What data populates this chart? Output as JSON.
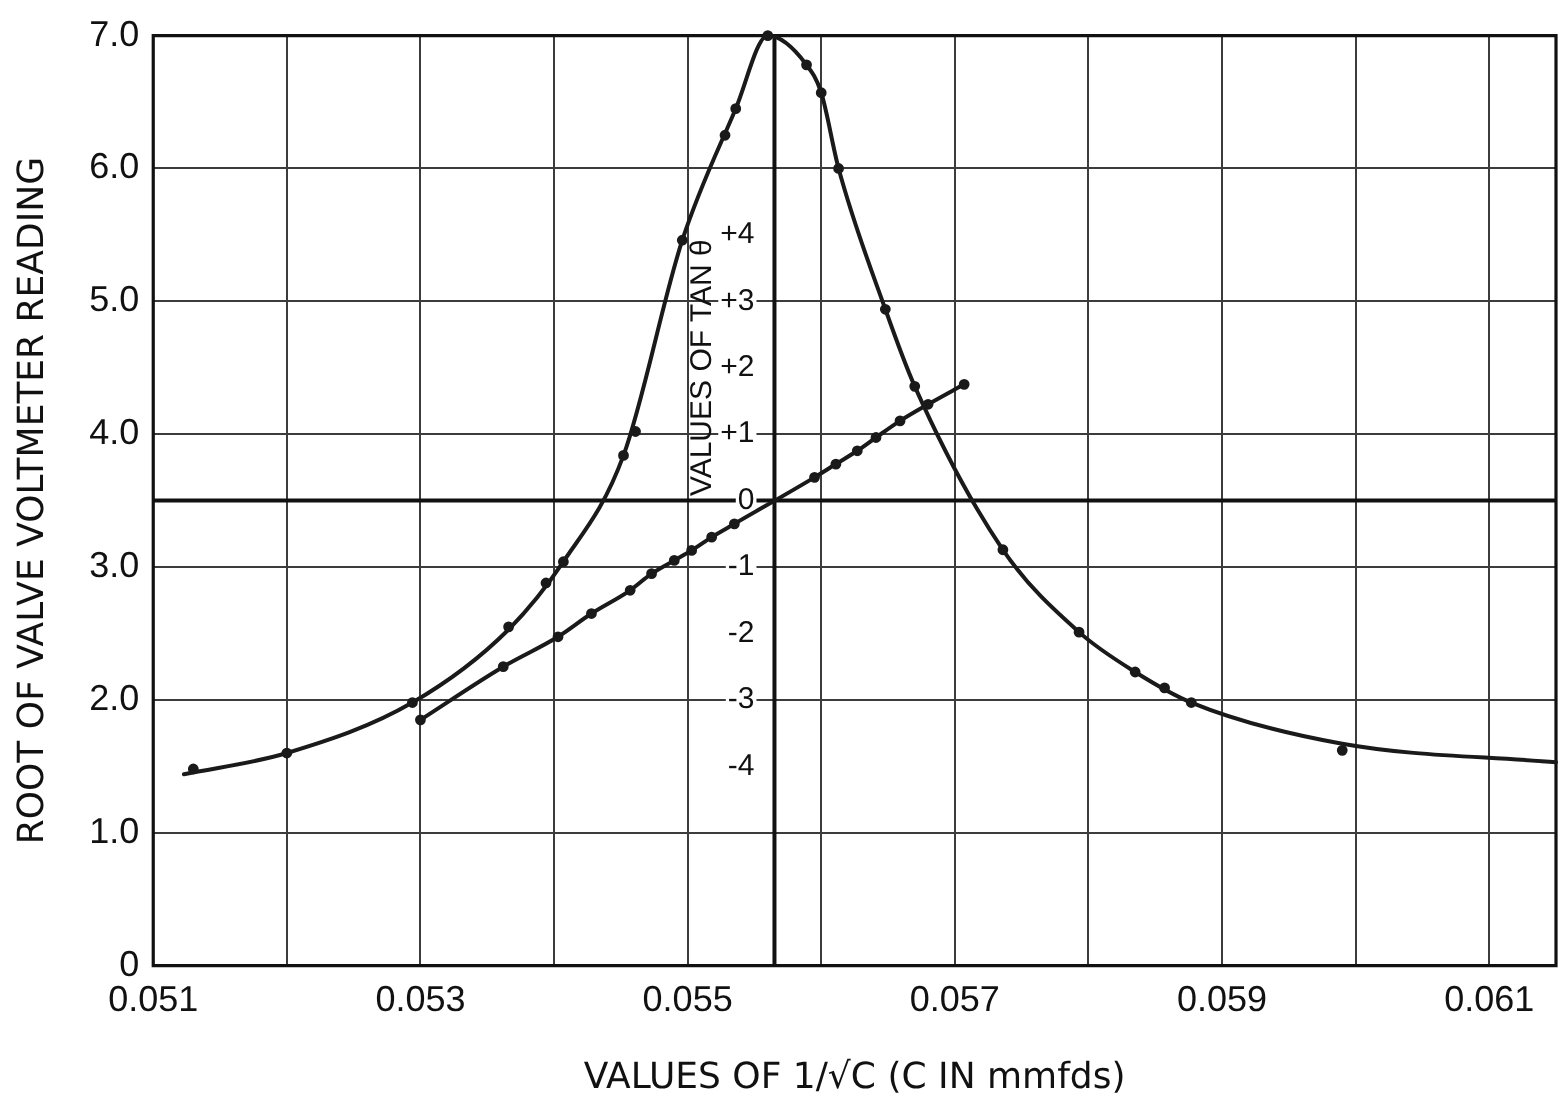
{
  "chart_data": {
    "type": "line",
    "xlabel": "VALUES OF 1/√C (C IN mmfds)",
    "ylabel": "ROOT OF VALVE VOLTMETER READING",
    "y2label": "VALUES OF TAN θ",
    "xlim": [
      0.051,
      0.0615
    ],
    "xticks": [
      0.051,
      {
        "value": 0.052,
        "label": null
      },
      0.053,
      {
        "value": 0.054,
        "label": null
      },
      0.055,
      {
        "value": 0.056,
        "label": null
      },
      0.057,
      {
        "value": 0.058,
        "label": null
      },
      0.059,
      {
        "value": 0.06,
        "label": null
      },
      0.061
    ],
    "ylim": [
      0,
      7
    ],
    "yticks": [
      0,
      {
        "value": 1,
        "label": "1.0"
      },
      {
        "value": 2,
        "label": "2.0"
      },
      {
        "value": 3,
        "label": "3.0"
      },
      {
        "value": 4,
        "label": "4.0"
      },
      {
        "value": 5,
        "label": "5.0"
      },
      {
        "value": 6,
        "label": "6.0"
      },
      {
        "value": 7,
        "label": "7.0"
      }
    ],
    "y2lim": [
      -7,
      7
    ],
    "y2ticks": [
      -4,
      -3,
      -2,
      -1,
      0,
      {
        "value": 1,
        "label": "+1"
      },
      {
        "value": 2,
        "label": "+2"
      },
      {
        "value": 3,
        "label": "+3"
      },
      {
        "value": 4,
        "label": "+4"
      }
    ],
    "grid": true,
    "marker": "circle",
    "line_style": "solid",
    "ref_lines": [
      {
        "axis": "y2",
        "value": 0
      }
    ],
    "series": [
      {
        "marker": "none",
        "color": "#1a1a1a",
        "x": [
          0.05123,
          0.052,
          0.05294,
          0.05366,
          0.05407,
          0.05452,
          0.05496,
          0.05536,
          0.0556,
          0.05589,
          0.056,
          0.05613,
          0.05648,
          0.0567,
          0.05736,
          0.05793,
          0.05835,
          0.05877,
          0.0599,
          0.0615
        ],
        "values": [
          1.44,
          1.6,
          1.98,
          2.53,
          3.04,
          3.84,
          5.46,
          6.45,
          7.0,
          6.78,
          6.57,
          6.0,
          4.94,
          4.36,
          3.13,
          2.51,
          2.21,
          1.98,
          1.67,
          1.53
        ]
      },
      {
        "type": "scatter",
        "color": "#1a1a1a",
        "x": [
          0.0513,
          0.052,
          0.05294,
          0.05366,
          0.05394,
          0.05407,
          0.05452,
          0.05461,
          0.05496,
          0.05528,
          0.05536,
          0.0556,
          0.05589,
          0.056,
          0.05613,
          0.05648,
          0.0567,
          0.05736,
          0.05793,
          0.05835,
          0.05857,
          0.05877,
          0.0599
        ],
        "values": [
          1.48,
          1.6,
          1.98,
          2.55,
          2.88,
          3.04,
          3.84,
          4.02,
          5.46,
          6.25,
          6.45,
          7.0,
          6.78,
          6.57,
          6.0,
          4.94,
          4.36,
          3.13,
          2.51,
          2.21,
          2.09,
          1.98,
          1.62
        ]
      },
      {
        "axis": "y2",
        "color": "#1a1a1a",
        "x": [
          0.053,
          0.05362,
          0.05403,
          0.05428,
          0.05457,
          0.05473,
          0.0549,
          0.05503,
          0.05518,
          0.05535,
          0.05595,
          0.05611,
          0.05627,
          0.05641,
          0.05659,
          0.0568,
          0.05707
        ],
        "values": [
          -3.3,
          -2.5,
          -2.05,
          -1.7,
          -1.35,
          -1.1,
          -0.9,
          -0.75,
          -0.55,
          -0.35,
          0.35,
          0.55,
          0.75,
          0.95,
          1.2,
          1.45,
          1.75
        ]
      }
    ]
  }
}
